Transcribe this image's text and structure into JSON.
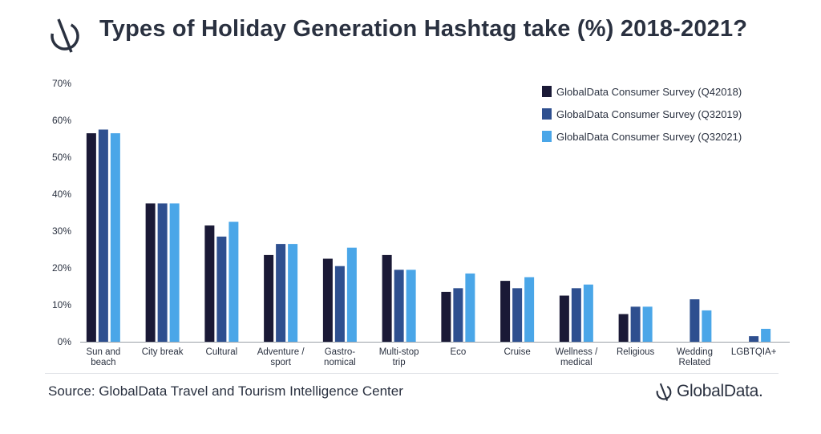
{
  "title": "Types of Holiday Generation Hashtag take (%) 2018-2021?",
  "source": "Source: GlobalData Travel and Tourism Intelligence Center",
  "brand": "GlobalData.",
  "colors": {
    "series": [
      "#1a1936",
      "#2e4f8f",
      "#4aa6e8"
    ],
    "text": "#2a3140"
  },
  "chart_data": {
    "type": "bar",
    "categories": [
      [
        "Sun and",
        "beach"
      ],
      [
        "City break"
      ],
      [
        "Cultural"
      ],
      [
        "Adventure /",
        "sport"
      ],
      [
        "Gastro-",
        "nomical"
      ],
      [
        "Multi-stop",
        "trip"
      ],
      [
        "Eco"
      ],
      [
        "Cruise"
      ],
      [
        "Wellness /",
        "medical"
      ],
      [
        "Religious"
      ],
      [
        "Wedding",
        "Related"
      ],
      [
        "LGBTQIA+"
      ]
    ],
    "series": [
      {
        "name": "GlobalData Consumer Survey (Q42018)",
        "values": [
          56.5,
          37.5,
          31.5,
          23.5,
          22.5,
          23.5,
          13.5,
          16.5,
          12.5,
          7.5,
          null,
          null
        ]
      },
      {
        "name": "GlobalData Consumer Survey (Q32019)",
        "values": [
          57.5,
          37.5,
          28.5,
          26.5,
          20.5,
          19.5,
          14.5,
          14.5,
          14.5,
          9.5,
          11.5,
          1.5
        ]
      },
      {
        "name": "GlobalData Consumer Survey (Q32021)",
        "values": [
          56.5,
          37.5,
          32.5,
          26.5,
          25.5,
          19.5,
          18.5,
          17.5,
          15.5,
          9.5,
          8.5,
          3.5
        ]
      }
    ],
    "ylim": [
      0,
      70
    ],
    "yticks": [
      0,
      10,
      20,
      30,
      40,
      50,
      60,
      70
    ],
    "ytick_labels": [
      "0%",
      "10%",
      "20%",
      "30%",
      "40%",
      "50%",
      "60%",
      "70%"
    ],
    "grid": false,
    "legend_position": "top-right"
  }
}
